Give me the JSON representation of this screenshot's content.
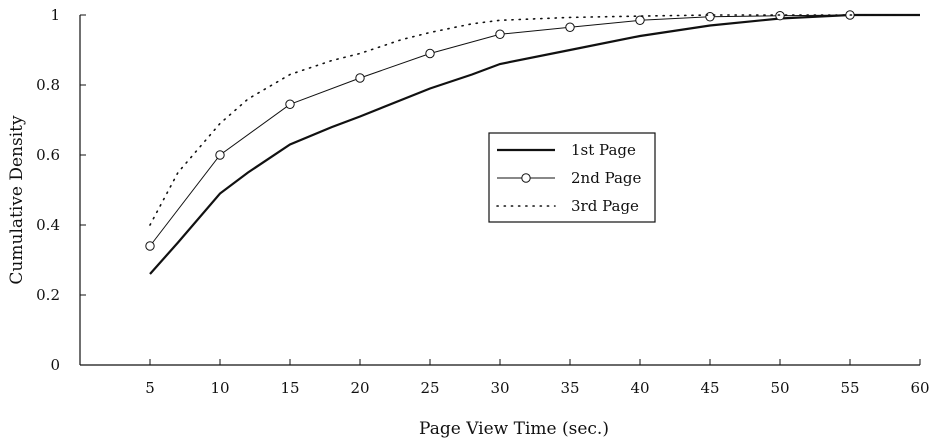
{
  "chart_data": {
    "type": "line",
    "title": "",
    "xlabel": "Page View Time (sec.)",
    "ylabel": "Cumulative Density",
    "xlim": [
      0,
      60
    ],
    "ylim": [
      0,
      1
    ],
    "xticks": [
      5,
      10,
      15,
      20,
      25,
      30,
      35,
      40,
      45,
      50,
      55,
      60
    ],
    "xtick_labels": [
      "5",
      "10",
      "15",
      "20",
      "25",
      "30",
      "35",
      "40",
      "45",
      "50",
      "55",
      "60"
    ],
    "yticks": [
      0,
      0.2,
      0.4,
      0.6,
      0.8,
      1
    ],
    "ytick_labels": [
      "0",
      "0.2",
      "0.4",
      "0.6",
      "0.8",
      "1"
    ],
    "grid": false,
    "legend_position": "center-right",
    "series": [
      {
        "name": "1st Page",
        "style": "solid-thick",
        "color": "#111111",
        "x": [
          5,
          7,
          10,
          12,
          15,
          18,
          20,
          25,
          28,
          30,
          35,
          40,
          45,
          50,
          55,
          60
        ],
        "y": [
          0.26,
          0.35,
          0.49,
          0.55,
          0.63,
          0.68,
          0.71,
          0.79,
          0.83,
          0.86,
          0.9,
          0.94,
          0.97,
          0.99,
          1.0,
          1.0
        ]
      },
      {
        "name": "2nd Page",
        "style": "solid-circles",
        "color": "#111111",
        "x": [
          5,
          10,
          15,
          20,
          25,
          30,
          35,
          40,
          45,
          50,
          55,
          60
        ],
        "y": [
          0.34,
          0.6,
          0.745,
          0.82,
          0.89,
          0.945,
          0.965,
          0.985,
          0.995,
          0.998,
          1.0,
          1.0
        ]
      },
      {
        "name": "3rd Page",
        "style": "dotted",
        "color": "#111111",
        "x": [
          5,
          7,
          10,
          12,
          15,
          18,
          20,
          23,
          25,
          28,
          30,
          35,
          40,
          45,
          50,
          55,
          60
        ],
        "y": [
          0.4,
          0.55,
          0.69,
          0.76,
          0.83,
          0.87,
          0.89,
          0.93,
          0.95,
          0.975,
          0.985,
          0.993,
          0.997,
          1.0,
          1.0,
          1.0,
          1.0
        ]
      }
    ]
  }
}
